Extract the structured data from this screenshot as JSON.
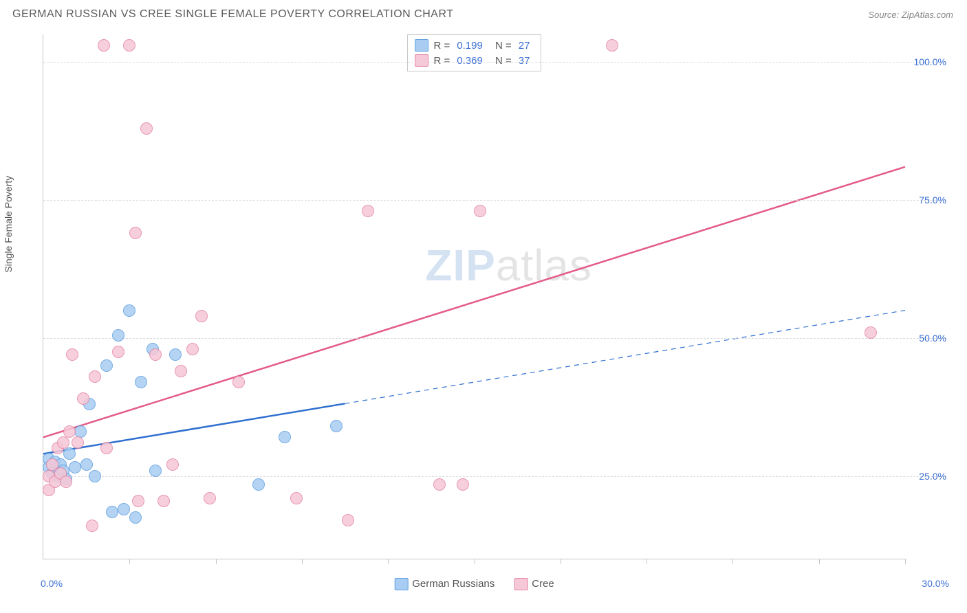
{
  "header": {
    "title": "GERMAN RUSSIAN VS CREE SINGLE FEMALE POVERTY CORRELATION CHART",
    "source": "Source: ZipAtlas.com"
  },
  "watermark": {
    "zip": "ZIP",
    "atlas": "atlas"
  },
  "chart": {
    "type": "scatter",
    "y_axis_label": "Single Female Poverty",
    "background_color": "#ffffff",
    "grid_color": "#dcdcdc",
    "axis_color": "#c5c5c5",
    "tick_label_color": "#3b6fd4",
    "label_fontsize": 14,
    "marker_size": 18,
    "marker_opacity": 0.85,
    "xlim": [
      0,
      30
    ],
    "ylim": [
      10,
      105
    ],
    "ytick_step": 25,
    "yticks": [
      {
        "value": 25,
        "label": "25.0%"
      },
      {
        "value": 50,
        "label": "50.0%"
      },
      {
        "value": 75,
        "label": "75.0%"
      },
      {
        "value": 100,
        "label": "100.0%"
      }
    ],
    "xtick_positions": [
      3,
      6,
      9,
      12,
      15,
      18,
      21,
      24,
      27,
      30
    ],
    "xlim_labels": {
      "min": "0.0%",
      "max": "30.0%"
    },
    "series": [
      {
        "key": "german_russians",
        "name": "German Russians",
        "fill_color": "#a9cdf2",
        "stroke_color": "#5f9fe0",
        "trend_color": "#2f6fd0",
        "trend_solid_until_x": 10.5,
        "trend_width_solid": 2.5,
        "trend_width_dash": 1.2,
        "R": "0.199",
        "N": "27",
        "trend": {
          "x1": 0,
          "y1": 29,
          "x2": 30,
          "y2": 55
        },
        "points": [
          {
            "x": 0.2,
            "y": 28
          },
          {
            "x": 0.2,
            "y": 26.5
          },
          {
            "x": 0.3,
            "y": 25.5
          },
          {
            "x": 0.4,
            "y": 27.5
          },
          {
            "x": 0.5,
            "y": 25
          },
          {
            "x": 0.6,
            "y": 27
          },
          {
            "x": 0.7,
            "y": 26
          },
          {
            "x": 0.8,
            "y": 24.5
          },
          {
            "x": 0.9,
            "y": 29
          },
          {
            "x": 1.1,
            "y": 26.5
          },
          {
            "x": 1.3,
            "y": 33
          },
          {
            "x": 1.5,
            "y": 27
          },
          {
            "x": 1.6,
            "y": 38
          },
          {
            "x": 1.8,
            "y": 25
          },
          {
            "x": 2.2,
            "y": 45
          },
          {
            "x": 2.4,
            "y": 18.5
          },
          {
            "x": 2.6,
            "y": 50.5
          },
          {
            "x": 2.8,
            "y": 19
          },
          {
            "x": 3.0,
            "y": 55
          },
          {
            "x": 3.2,
            "y": 17.5
          },
          {
            "x": 3.4,
            "y": 42
          },
          {
            "x": 3.8,
            "y": 48
          },
          {
            "x": 3.9,
            "y": 26
          },
          {
            "x": 4.6,
            "y": 47
          },
          {
            "x": 7.5,
            "y": 23.5
          },
          {
            "x": 8.4,
            "y": 32
          },
          {
            "x": 10.2,
            "y": 34
          }
        ]
      },
      {
        "key": "cree",
        "name": "Cree",
        "fill_color": "#f6c7d6",
        "stroke_color": "#e386a4",
        "trend_color": "#e35b86",
        "trend_solid_until_x": 30,
        "trend_width_solid": 2.5,
        "trend_width_dash": 1.2,
        "R": "0.369",
        "N": "37",
        "trend": {
          "x1": 0,
          "y1": 32,
          "x2": 30,
          "y2": 81
        },
        "points": [
          {
            "x": 0.2,
            "y": 25
          },
          {
            "x": 0.2,
            "y": 22.5
          },
          {
            "x": 0.3,
            "y": 27
          },
          {
            "x": 0.4,
            "y": 24
          },
          {
            "x": 0.5,
            "y": 30
          },
          {
            "x": 0.6,
            "y": 25.5
          },
          {
            "x": 0.7,
            "y": 31
          },
          {
            "x": 0.8,
            "y": 24
          },
          {
            "x": 0.9,
            "y": 33
          },
          {
            "x": 1.0,
            "y": 47
          },
          {
            "x": 1.2,
            "y": 31
          },
          {
            "x": 1.4,
            "y": 39
          },
          {
            "x": 1.7,
            "y": 16
          },
          {
            "x": 1.8,
            "y": 43
          },
          {
            "x": 2.1,
            "y": 103
          },
          {
            "x": 2.2,
            "y": 30
          },
          {
            "x": 2.6,
            "y": 47.5
          },
          {
            "x": 3.2,
            "y": 69
          },
          {
            "x": 3.0,
            "y": 103
          },
          {
            "x": 3.3,
            "y": 20.5
          },
          {
            "x": 3.6,
            "y": 88
          },
          {
            "x": 3.9,
            "y": 47
          },
          {
            "x": 4.2,
            "y": 20.5
          },
          {
            "x": 4.5,
            "y": 27
          },
          {
            "x": 4.8,
            "y": 44
          },
          {
            "x": 5.2,
            "y": 48
          },
          {
            "x": 5.5,
            "y": 54
          },
          {
            "x": 5.8,
            "y": 21
          },
          {
            "x": 6.8,
            "y": 42
          },
          {
            "x": 8.8,
            "y": 21
          },
          {
            "x": 10.6,
            "y": 17
          },
          {
            "x": 11.3,
            "y": 73
          },
          {
            "x": 13.8,
            "y": 23.5
          },
          {
            "x": 15.2,
            "y": 73
          },
          {
            "x": 19.8,
            "y": 103
          },
          {
            "x": 14.6,
            "y": 23.5
          },
          {
            "x": 28.8,
            "y": 51
          }
        ]
      }
    ],
    "legend_top": {
      "border_color": "#c9c9c9",
      "R_label": "R =",
      "N_label": "N ="
    }
  }
}
